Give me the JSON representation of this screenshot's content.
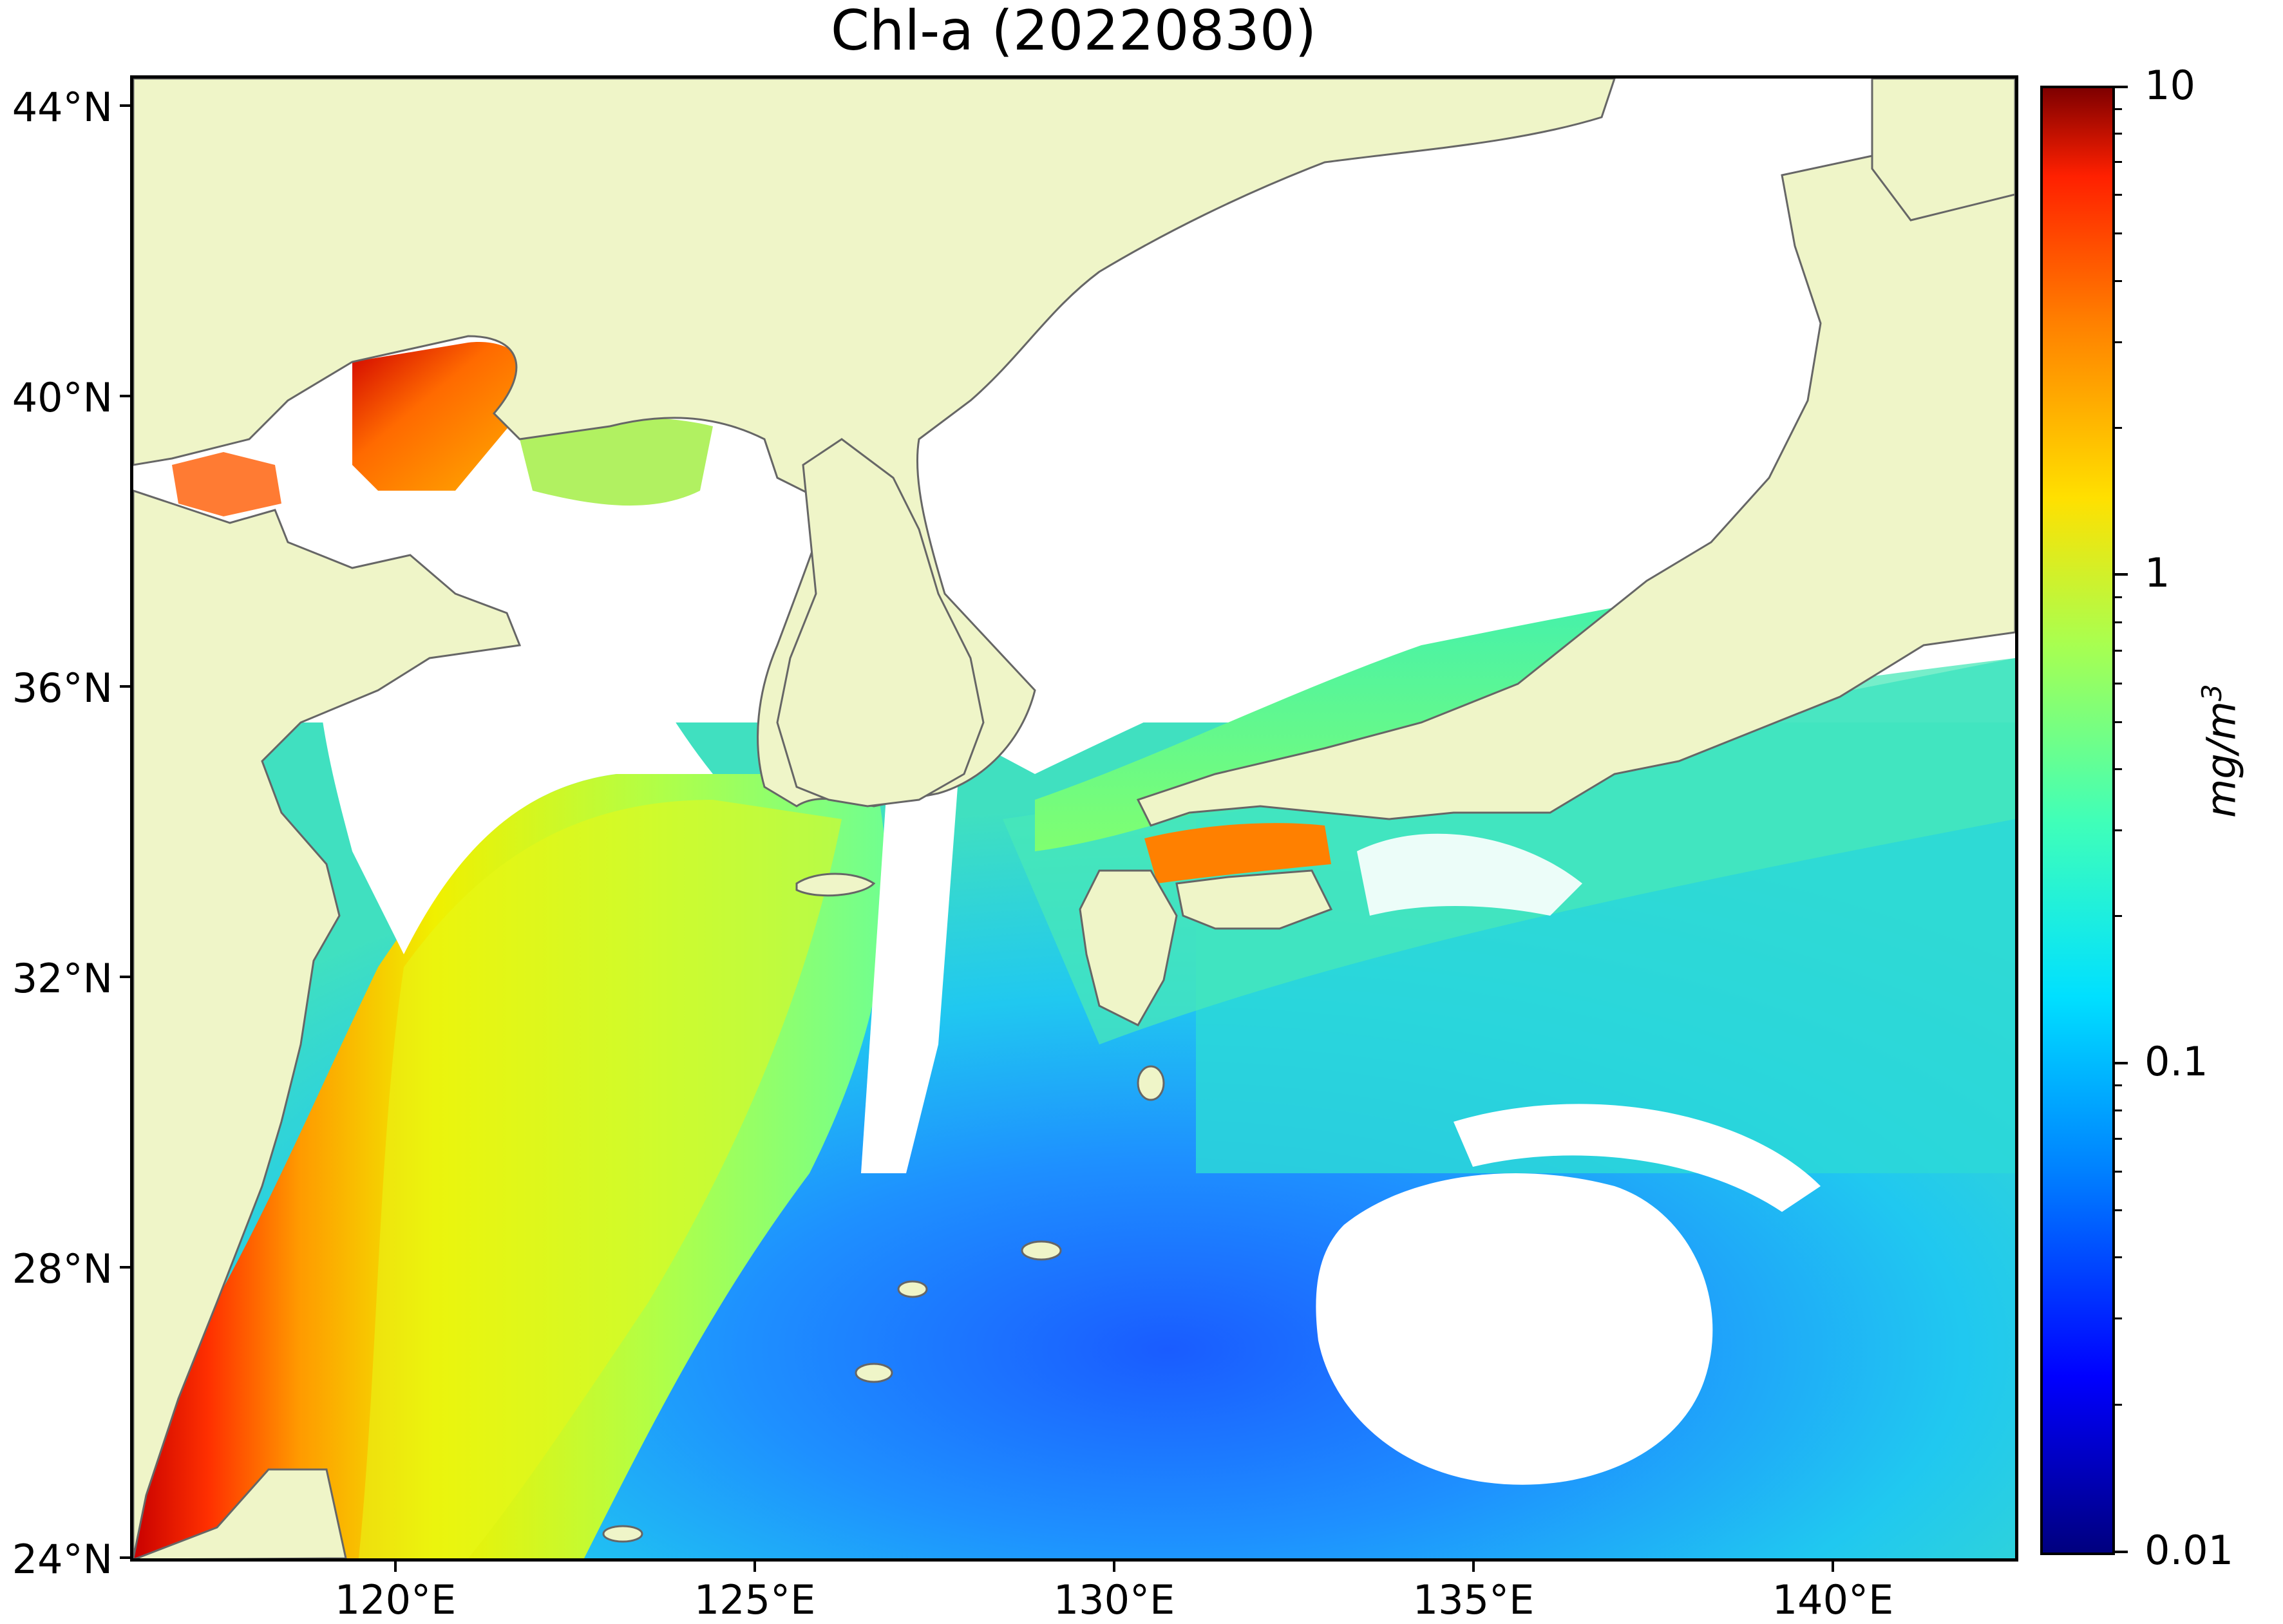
{
  "title": "Chl-a (20220830)",
  "map": {
    "latitude_labels": [
      "44°N",
      "40°N",
      "36°N",
      "32°N",
      "28°N",
      "24°N"
    ],
    "longitude_labels": [
      "120°E",
      "125°E",
      "130°E",
      "135°E",
      "140°E"
    ],
    "extent": {
      "lon_min": 116.0,
      "lon_max": 142.3,
      "lat_min": 24.0,
      "lat_max": 44.5
    },
    "colors": {
      "land": "#eff5c8",
      "coastline": "#666666",
      "no_data": "#ffffff"
    }
  },
  "colorbar": {
    "unit_base": "mg/m",
    "unit_exponent": "3",
    "scale": "log",
    "range": [
      0.01,
      10
    ],
    "tick_labels": [
      "10",
      "1",
      "0.1",
      "0.01"
    ],
    "colormap": "jet"
  }
}
